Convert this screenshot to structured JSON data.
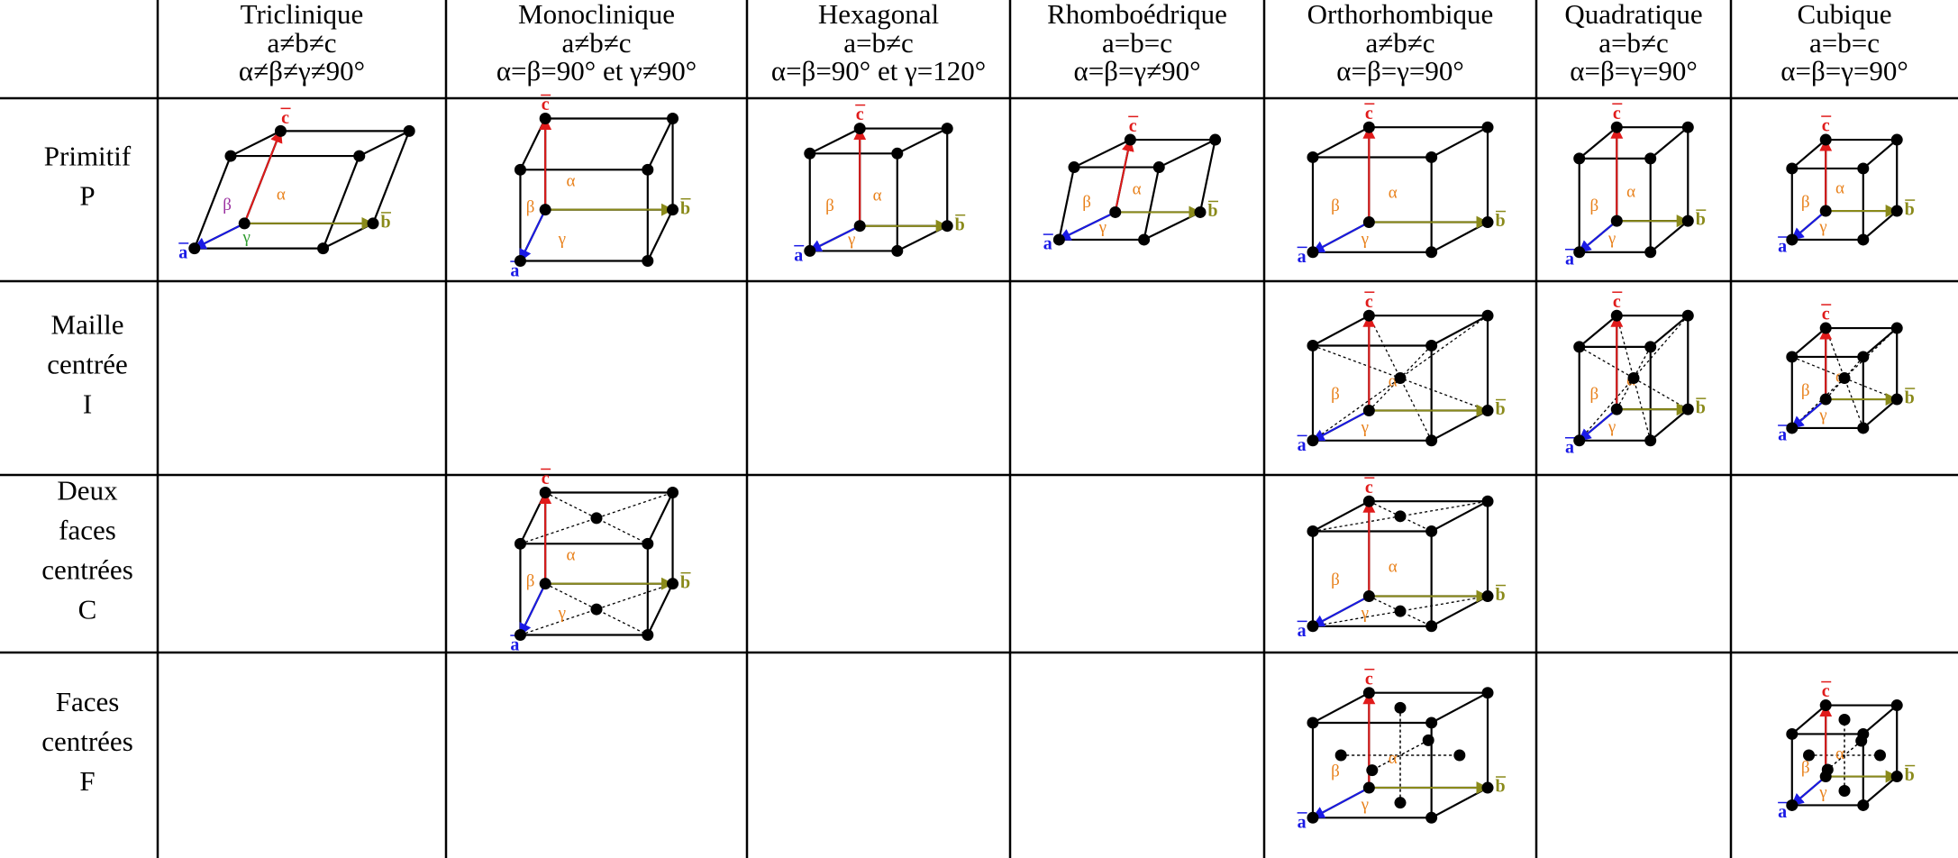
{
  "symbols": {
    "a": "a",
    "b": "b",
    "c": "c",
    "alpha": "α",
    "beta": "β",
    "gamma": "γ"
  },
  "table": {
    "columns": [
      {
        "name": "Triclinique",
        "lengths": "a≠b≠c",
        "angles": "α≠β≠γ≠90°"
      },
      {
        "name": "Monoclinique",
        "lengths": "a≠b≠c",
        "angles": "α=β=90° et γ≠90°"
      },
      {
        "name": "Hexagonal",
        "lengths": "a=b≠c",
        "angles": "α=β=90° et γ=120°"
      },
      {
        "name": "Rhomboédrique",
        "lengths": "a=b=c",
        "angles": "α=β=γ≠90°"
      },
      {
        "name": "Orthorhombique",
        "lengths": "a≠b≠c",
        "angles": "α=β=γ=90°"
      },
      {
        "name": "Quadratique",
        "lengths": "a=b≠c",
        "angles": "α=β=γ=90°"
      },
      {
        "name": "Cubique",
        "lengths": "a=b=c",
        "angles": "α=β=γ=90°"
      }
    ],
    "rows": [
      {
        "label": [
          "Primitif",
          "P"
        ]
      },
      {
        "label": [
          "Maille",
          "centrée",
          "I"
        ]
      },
      {
        "label": [
          "Deux",
          "faces",
          "centrées",
          "C"
        ]
      },
      {
        "label": [
          "Faces",
          "centrées",
          "F"
        ]
      }
    ]
  }
}
